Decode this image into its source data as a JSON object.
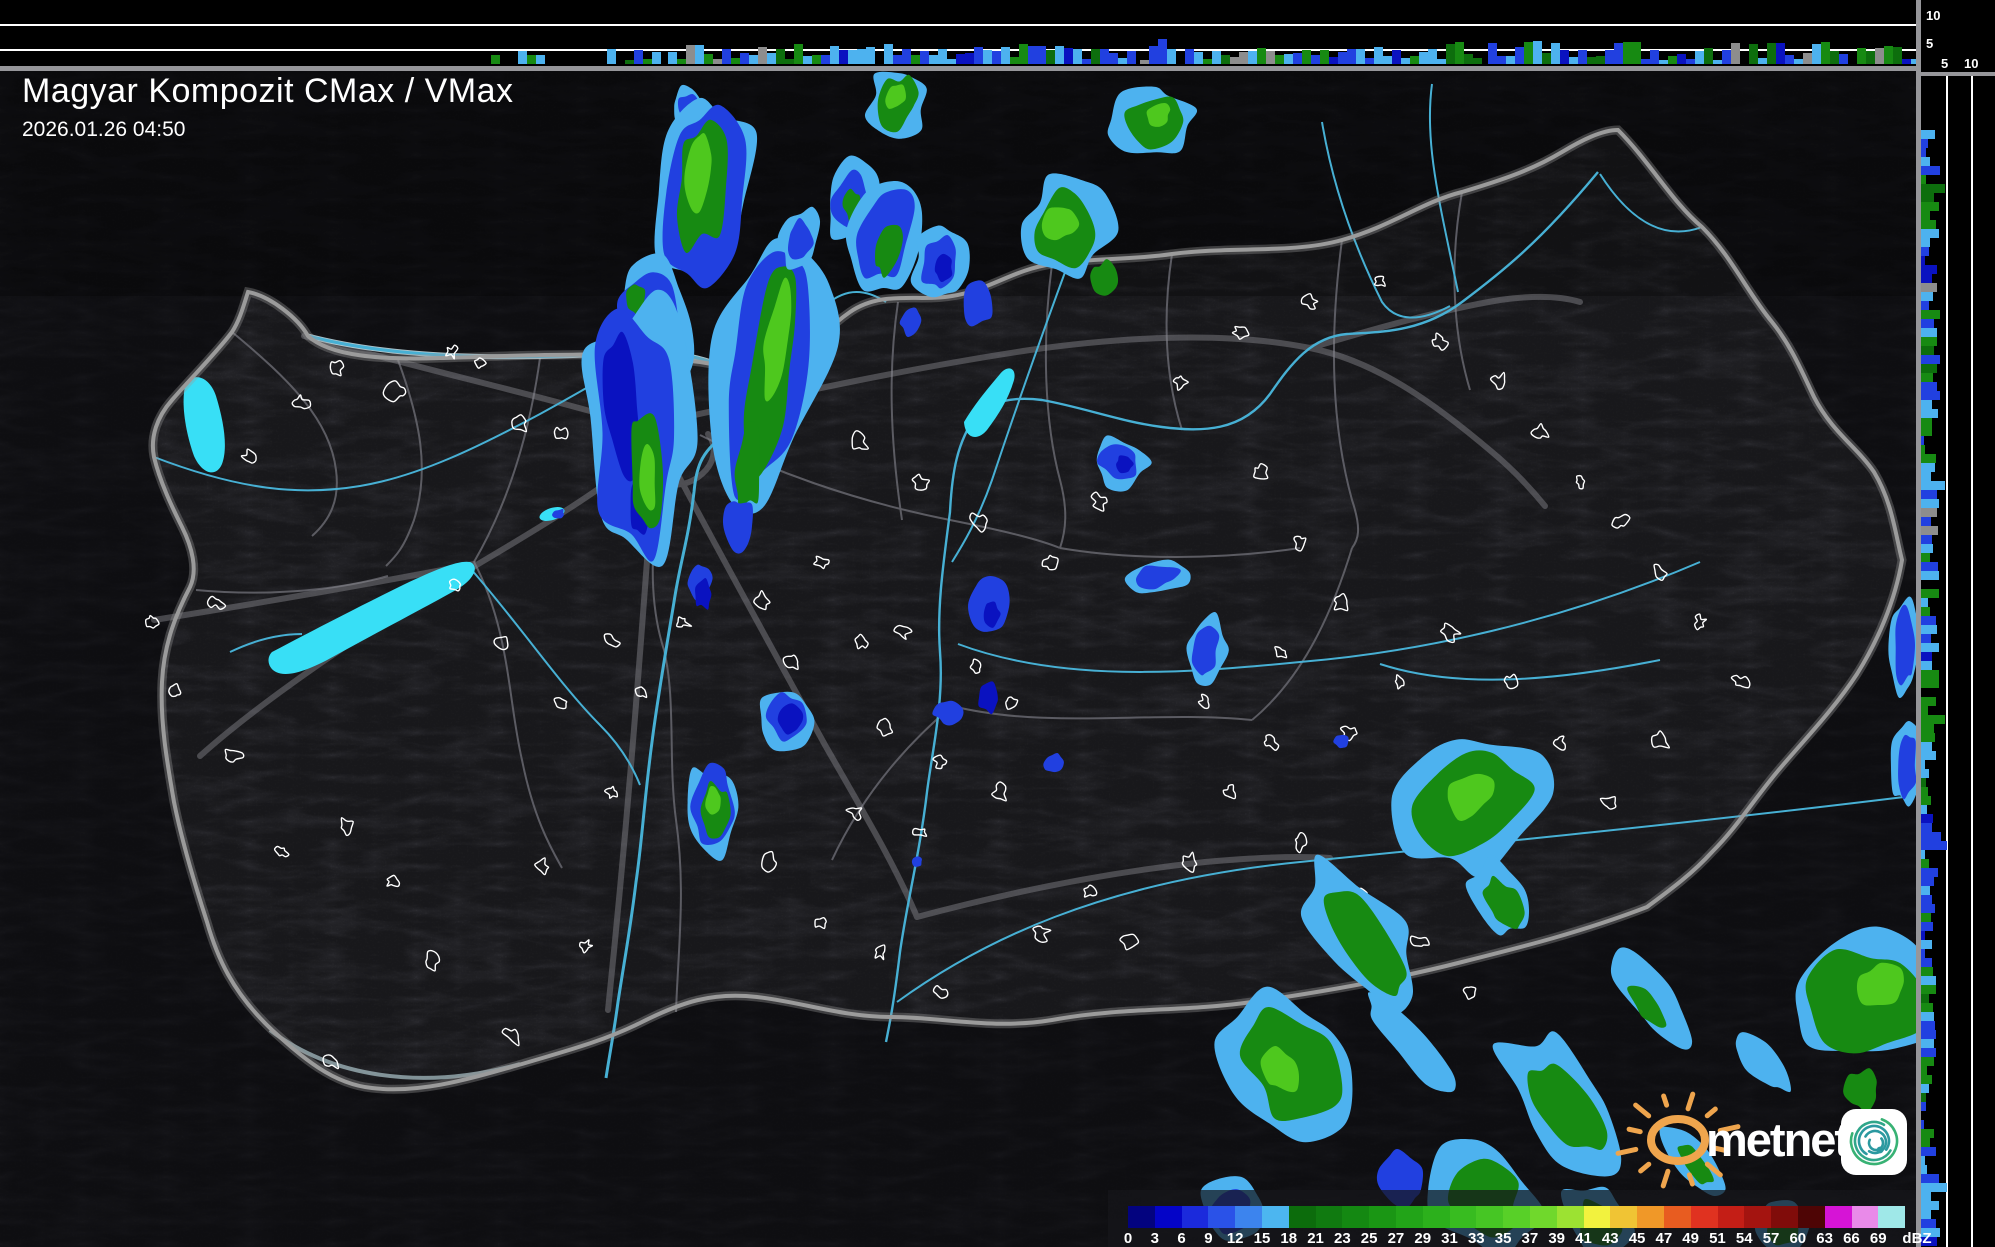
{
  "header": {
    "title": "Magyar Kompozit CMax / VMax",
    "timestamp": "2026.01.26 04:50"
  },
  "profiles": {
    "top_axis_labels": [
      "10",
      "5"
    ],
    "right_axis_labels": [
      "5",
      "10"
    ]
  },
  "scale": {
    "unit": "dBZ",
    "ticks": [
      "0",
      "3",
      "6",
      "9",
      "12",
      "15",
      "18",
      "21",
      "23",
      "25",
      "27",
      "29",
      "31",
      "33",
      "35",
      "37",
      "39",
      "41",
      "43",
      "45",
      "47",
      "49",
      "51",
      "54",
      "57",
      "60",
      "63",
      "66",
      "69"
    ],
    "colors": [
      "#03037f",
      "#0404c8",
      "#1b2adc",
      "#2a52e8",
      "#3c84ee",
      "#4cb6f0",
      "#0c6c0c",
      "#107a10",
      "#148812",
      "#1a9614",
      "#22a418",
      "#2cb01c",
      "#38bc20",
      "#46c624",
      "#58d028",
      "#70d82c",
      "#9ce232",
      "#f2f23e",
      "#f0c434",
      "#f09828",
      "#e85c20",
      "#e03220",
      "#c41e16",
      "#a41410",
      "#800c0a",
      "#4e0505",
      "#d614d6",
      "#e98ae9",
      "#9fe8e8"
    ]
  },
  "logo": {
    "brand": "metnet"
  },
  "colors": {
    "echo_lightblue": "#4db2ef",
    "echo_blue": "#2140e0",
    "echo_darkblue": "#0a12c0",
    "echo_green": "#178a12",
    "echo_brightgreen": "#4ec81e",
    "echo_darkgreen": "#0d6e0d",
    "clutter_gray": "#8d8d8d",
    "water": "#38dff6",
    "river": "#47b0d4",
    "border_gray": "#9b9b9b"
  }
}
